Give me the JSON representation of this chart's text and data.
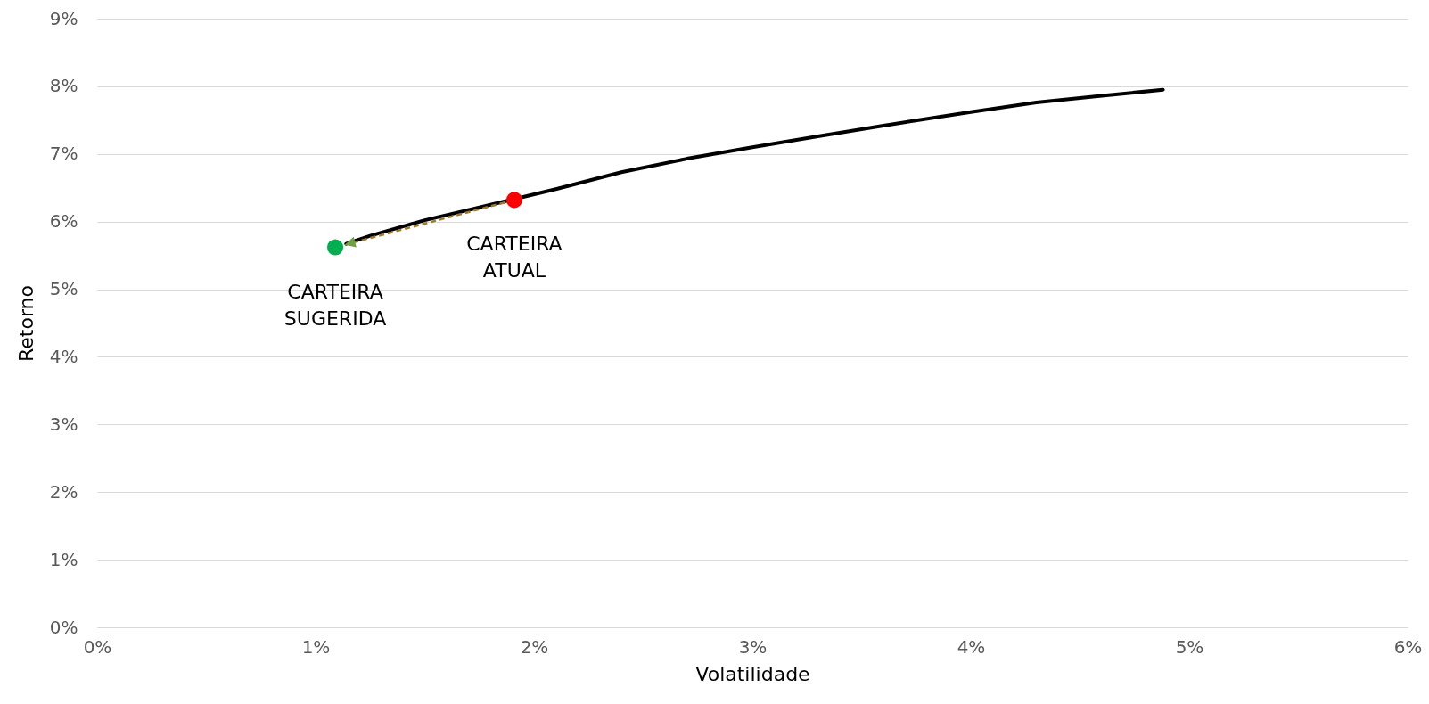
{
  "chart_data": {
    "type": "line",
    "xlabel": "Volatilidade",
    "ylabel": "Retorno",
    "xlim": [
      0,
      6
    ],
    "xticks": [
      {
        "value": 0,
        "label": "0%"
      },
      {
        "value": 1,
        "label": "1%"
      },
      {
        "value": 2,
        "label": "2%"
      },
      {
        "value": 3,
        "label": "3%"
      },
      {
        "value": 4,
        "label": "4%"
      },
      {
        "value": 5,
        "label": "5%"
      },
      {
        "value": 6,
        "label": "6%"
      }
    ],
    "ylim": [
      0,
      9
    ],
    "yticks": [
      {
        "value": 0,
        "label": "0%"
      },
      {
        "value": 1,
        "label": "1%"
      },
      {
        "value": 2,
        "label": "2%"
      },
      {
        "value": 3,
        "label": "3%"
      },
      {
        "value": 4,
        "label": "4%"
      },
      {
        "value": 5,
        "label": "5%"
      },
      {
        "value": 6,
        "label": "6%"
      },
      {
        "value": 7,
        "label": "7%"
      },
      {
        "value": 8,
        "label": "8%"
      },
      {
        "value": 9,
        "label": "9%"
      }
    ],
    "grid": "y",
    "line_style": "solid",
    "series": [
      {
        "color": "#000000",
        "x": [
          1.14,
          1.25,
          1.5,
          1.75,
          2.1,
          2.4,
          2.7,
          3.0,
          3.3,
          3.6,
          4.0,
          4.3,
          4.6,
          4.88
        ],
        "values": [
          5.67,
          5.79,
          6.02,
          6.21,
          6.48,
          6.73,
          6.93,
          7.1,
          7.26,
          7.42,
          7.62,
          7.76,
          7.86,
          7.95
        ]
      },
      {
        "type": "scatter",
        "marker": "circle",
        "color": "#ff0000",
        "x": [
          1.91
        ],
        "values": [
          6.32
        ]
      },
      {
        "type": "scatter",
        "marker": "circle",
        "color": "#00b050",
        "x": [
          1.09
        ],
        "values": [
          5.62
        ]
      }
    ],
    "annotations": [
      {
        "text": "CARTEIRA ATUAL",
        "x": 1.91,
        "y": 6.32
      },
      {
        "text": "CARTEIRA SUGERIDA",
        "x": 1.09,
        "y": 5.62
      }
    ]
  }
}
